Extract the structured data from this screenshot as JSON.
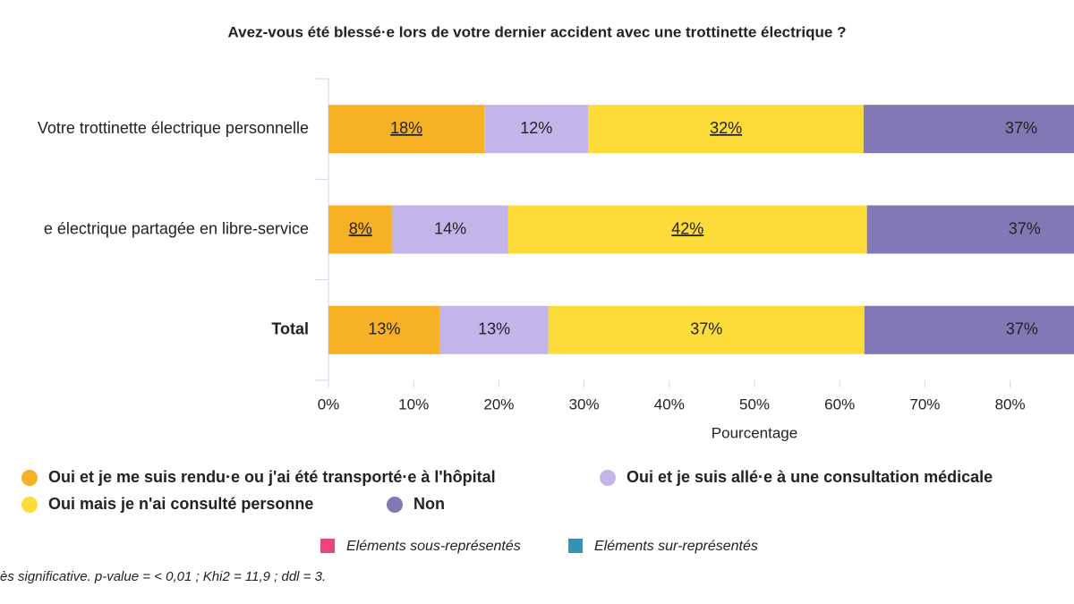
{
  "chart_data": {
    "type": "stacked-bar-horizontal",
    "title": "Avez-vous été blessé·e lors de votre dernier accident avec une trottinette électrique ?",
    "categories": [
      "Votre trottinette électrique personnelle",
      "e électrique partagée en libre-service",
      "Total"
    ],
    "categories_bold": [
      false,
      false,
      true
    ],
    "series": [
      {
        "name": "Oui et je me suis rendu·e ou j'ai été transporté·e à l'hôpital",
        "color": "#f7b125",
        "values": [
          18.3,
          7.5,
          13.1
        ],
        "value_labels": [
          "18%",
          "8%",
          "13%"
        ],
        "value_label_colors": [
          "#3a8fb7",
          "#e8467c",
          null
        ]
      },
      {
        "name": "Oui et je suis allé·e à une consultation médicale",
        "color": "#c3b5ea",
        "values": [
          12.2,
          13.6,
          12.7
        ],
        "value_labels": [
          "12%",
          "14%",
          "13%"
        ],
        "value_label_colors": [
          null,
          null,
          null
        ]
      },
      {
        "name": "Oui mais je n'ai consulté personne",
        "color": "#fddc39",
        "values": [
          32.3,
          42.1,
          37.1
        ],
        "value_labels": [
          "32%",
          "42%",
          "37%"
        ],
        "value_label_colors": [
          "#e8467c",
          "#3a8fb7",
          null
        ]
      },
      {
        "name": "Non",
        "color": "#8378b6",
        "values": [
          37,
          37,
          37
        ],
        "value_labels": [
          "37%",
          "37%",
          "37%"
        ],
        "value_label_colors": [
          null,
          null,
          null
        ]
      }
    ],
    "xlabel": "Pourcentage",
    "xlim": [
      0,
      100
    ],
    "xticks": [
      {
        "value": 0,
        "label": "0%"
      },
      {
        "value": 10,
        "label": "10%"
      },
      {
        "value": 20,
        "label": "20%"
      },
      {
        "value": 30,
        "label": "30%"
      },
      {
        "value": 40,
        "label": "40%"
      },
      {
        "value": 50,
        "label": "50%"
      },
      {
        "value": 60,
        "label": "60%"
      },
      {
        "value": 70,
        "label": "70%"
      },
      {
        "value": 80,
        "label": "80%"
      }
    ],
    "significance": [
      {
        "label": "Eléments sous-représentés",
        "color": "#e8467c"
      },
      {
        "label": "Eléments sur-représentés",
        "color": "#3a8fb7"
      }
    ],
    "footnote": "ès significative. p-value = < 0,01 ; Khi2 = 11,9 ; ddl = 3."
  }
}
